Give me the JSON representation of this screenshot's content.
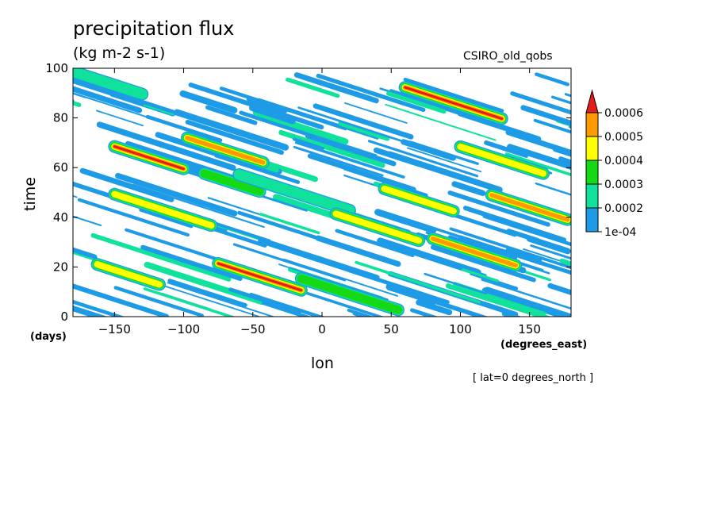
{
  "title": "precipitation flux",
  "units": "(kg m-2 s-1)",
  "model_label": "CSIRO_old_qobs",
  "annotation": "[ lat=0 degrees_north ]",
  "chart_data": {
    "type": "heatmap",
    "xlabel": "lon",
    "ylabel": "time",
    "x_units": "(degrees_east)",
    "y_units": "(days)",
    "xlim": [
      -180,
      180
    ],
    "ylim": [
      0,
      100
    ],
    "x_ticks": [
      -150,
      -100,
      -50,
      0,
      50,
      100,
      150
    ],
    "x_tick_labels": [
      "−150",
      "−100",
      "−50",
      "0",
      "50",
      "100",
      "150"
    ],
    "y_ticks": [
      0,
      20,
      40,
      60,
      80,
      100
    ],
    "y_tick_labels": [
      "0",
      "20",
      "40",
      "60",
      "80",
      "100"
    ],
    "colorbar": {
      "levels": [
        0.0001,
        0.0002,
        0.0003,
        0.0004,
        0.0005,
        0.0006
      ],
      "labels": [
        "1e-04",
        "0.0002",
        "0.0003",
        "0.0004",
        "0.0005",
        "0.0006"
      ],
      "colors": [
        "#1e9be6",
        "#10e29c",
        "#16d916",
        "#ffff00",
        "#ff9a00",
        "#e41c1c"
      ],
      "below_color": "#ffffff",
      "extend": "max"
    },
    "features": [
      {
        "lon": -160,
        "time": 95,
        "length": 60,
        "value": 0.00028
      },
      {
        "lon": -125,
        "time": 64,
        "length": 50,
        "value": 0.00062
      },
      {
        "lon": -115,
        "time": 43,
        "length": 70,
        "value": 0.00045
      },
      {
        "lon": -140,
        "time": 17,
        "length": 45,
        "value": 0.00048
      },
      {
        "lon": -70,
        "time": 67,
        "length": 55,
        "value": 0.00055
      },
      {
        "lon": -65,
        "time": 54,
        "length": 40,
        "value": 0.00035
      },
      {
        "lon": -45,
        "time": 16,
        "length": 60,
        "value": 0.0006
      },
      {
        "lon": -20,
        "time": 50,
        "length": 80,
        "value": 0.00025
      },
      {
        "lon": 40,
        "time": 36,
        "length": 60,
        "value": 0.0004
      },
      {
        "lon": 70,
        "time": 47,
        "length": 50,
        "value": 0.00042
      },
      {
        "lon": 95,
        "time": 86,
        "length": 70,
        "value": 0.00065
      },
      {
        "lon": 110,
        "time": 26,
        "length": 60,
        "value": 0.00058
      },
      {
        "lon": 150,
        "time": 44,
        "length": 55,
        "value": 0.00052
      },
      {
        "lon": 130,
        "time": 63,
        "length": 60,
        "value": 0.00045
      },
      {
        "lon": 20,
        "time": 9,
        "length": 70,
        "value": 0.0003
      }
    ]
  }
}
